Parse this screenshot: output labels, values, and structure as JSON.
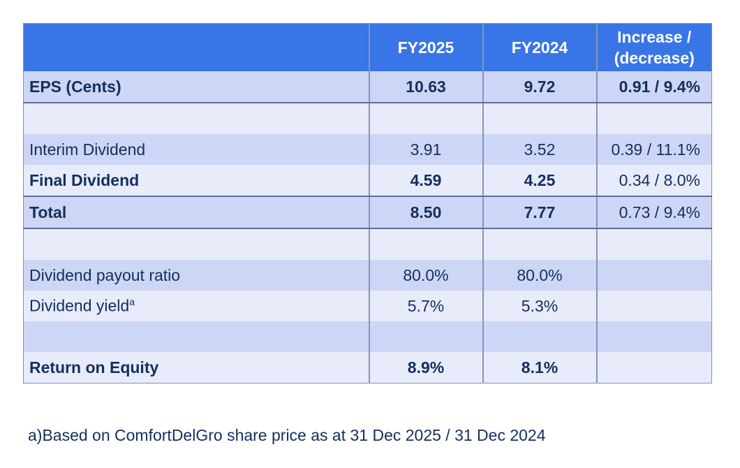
{
  "table": {
    "headers": [
      "",
      "FY2025",
      "FY2024",
      "Increase /\n(decrease)"
    ],
    "header_increase_line1": "Increase /",
    "header_increase_line2": "(decrease)",
    "rows": [
      {
        "label": "EPS (Cents)",
        "fy2025": "10.63",
        "fy2024": "9.72",
        "change": "0.91 / 9.4%"
      },
      {
        "label": "",
        "fy2025": "",
        "fy2024": "",
        "change": ""
      },
      {
        "label": "Interim Dividend",
        "fy2025": "3.91",
        "fy2024": "3.52",
        "change": "0.39 / 11.1%"
      },
      {
        "label": "Final Dividend",
        "fy2025": "4.59",
        "fy2024": "4.25",
        "change": "0.34 / 8.0%"
      },
      {
        "label": "Total",
        "fy2025": "8.50",
        "fy2024": "7.77",
        "change": "0.73 / 9.4%"
      },
      {
        "label": "",
        "fy2025": "",
        "fy2024": "",
        "change": ""
      },
      {
        "label": "Dividend payout ratio",
        "fy2025": "80.0%",
        "fy2024": "80.0%",
        "change": ""
      },
      {
        "label": "Dividend yield",
        "label_sup": "a",
        "fy2025": "5.7%",
        "fy2024": "5.3%",
        "change": ""
      },
      {
        "label": "",
        "fy2025": "",
        "fy2024": "",
        "change": ""
      },
      {
        "label": "Return on Equity",
        "fy2025": "8.9%",
        "fy2024": "8.1%",
        "change": ""
      }
    ]
  },
  "footnote": "a)Based on ComfortDelGro share price as at 31 Dec 2025 / 31 Dec 2024",
  "colors": {
    "header": "#3875e6",
    "row_dark": "#cdd6f4",
    "row_light": "#e8ebf9",
    "text": "#132f5e"
  }
}
